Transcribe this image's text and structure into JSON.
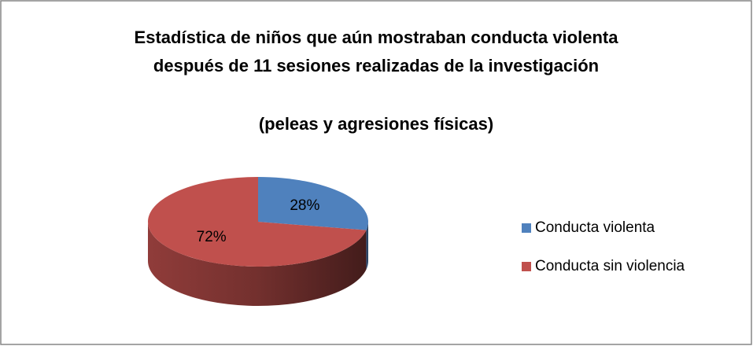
{
  "chart_data": {
    "type": "pie",
    "title": "Estadística de niños que aún mostraban conducta violenta después de 11 sesiones realizadas de la investigación",
    "subtitle": "(peleas y agresiones físicas)",
    "categories": [
      "Conducta violenta",
      "Conducta sin violencia"
    ],
    "values": [
      28,
      72
    ],
    "value_labels": [
      "28%",
      "72%"
    ],
    "colors": [
      "#4f81bd",
      "#c0504d"
    ],
    "legend": "right"
  }
}
